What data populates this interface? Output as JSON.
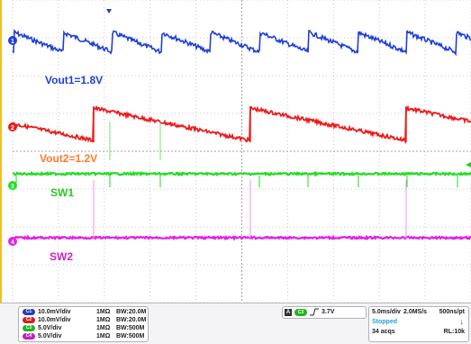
{
  "traces": {
    "ch1": {
      "marker": "1",
      "label": "Vout1=1.8V",
      "color": "#1f3fd8",
      "label_color": "#1f3fd8"
    },
    "ch2": {
      "marker": "2",
      "label": "Vout2=1.2V",
      "color": "#ee1a1a",
      "label_color": "#ff7a2a"
    },
    "ch3": {
      "marker": "3",
      "label": "SW1",
      "color": "#22dd22",
      "label_color": "#22cc22"
    },
    "ch4": {
      "marker": "4",
      "label": "SW2",
      "color": "#e41fe4",
      "label_color": "#cc22cc"
    }
  },
  "status": {
    "channels": [
      {
        "id": "C1",
        "scale": "10.0mV/div",
        "coupling": "1MΩ",
        "bw": "BW:20.0M",
        "color": "#2a3fb8"
      },
      {
        "id": "C2",
        "scale": "10.0mV/div",
        "coupling": "1MΩ",
        "bw": "BW:20.0M",
        "color": "#d42020"
      },
      {
        "id": "C3",
        "scale": "5.0V/div",
        "coupling": "1MΩ",
        "bw": "BW:500M",
        "color": "#22b422"
      },
      {
        "id": "C4",
        "scale": "5.0V/div",
        "coupling": "1MΩ",
        "bw": "BW:500M",
        "color": "#c020c0"
      }
    ],
    "trigger": {
      "mode": "A",
      "source": "C3",
      "level": "3.7V"
    },
    "acquisition": {
      "timebase": "5.0ms/div",
      "sample_rate": "2.0MS/s",
      "record": "500ns/pt",
      "state": "Stopped",
      "acqs": "34 acqs",
      "record_length": "RL:10k"
    }
  }
}
